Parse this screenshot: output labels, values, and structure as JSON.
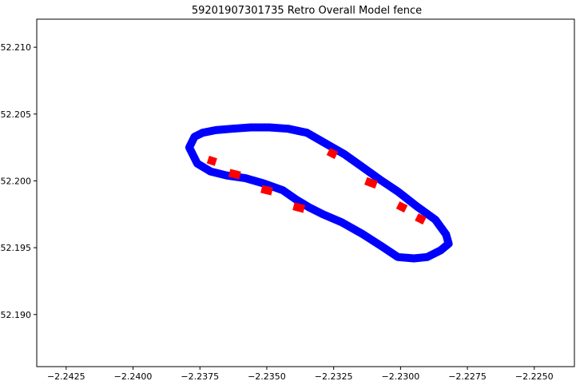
{
  "chart_data": {
    "type": "scatter",
    "title": "59201907301735 Retro Overall Model fence",
    "xlabel": "",
    "ylabel": "",
    "xlim": [
      -2.2436,
      -2.2235
    ],
    "ylim": [
      52.1861,
      52.2121
    ],
    "xticks": [
      -2.2425,
      -2.24,
      -2.2375,
      -2.235,
      -2.2325,
      -2.23,
      -2.2275,
      -2.225
    ],
    "xtick_labels": [
      "−2.2425",
      "−2.2400",
      "−2.2375",
      "−2.2350",
      "−2.2325",
      "−2.2300",
      "−2.2275",
      "−2.2250"
    ],
    "yticks": [
      52.19,
      52.195,
      52.2,
      52.205,
      52.21
    ],
    "ytick_labels": [
      "52.190",
      "52.195",
      "52.200",
      "52.205",
      "52.210"
    ],
    "grid": false,
    "colors": {
      "track": "#0000ff",
      "highlight": "#ff0000"
    },
    "series": [
      {
        "color": "#0000ff",
        "x": [
          -2.2379,
          -2.2376,
          -2.2371,
          -2.2365,
          -2.2358,
          -2.2351,
          -2.2344,
          -2.2339,
          -2.2334,
          -2.2329,
          -2.2322,
          -2.2314,
          -2.2307,
          -2.2301,
          -2.2295,
          -2.229,
          -2.2285,
          -2.2282,
          -2.2283,
          -2.2287,
          -2.2294,
          -2.2301,
          -2.2307,
          -2.2314,
          -2.2321,
          -2.2328,
          -2.2335,
          -2.2342,
          -2.2349,
          -2.2356,
          -2.2363,
          -2.2369,
          -2.2374,
          -2.2377,
          -2.2379
        ],
        "y": [
          52.2025,
          52.2013,
          52.2007,
          52.2004,
          52.2002,
          52.1998,
          52.1993,
          52.1986,
          52.198,
          52.1975,
          52.1969,
          52.196,
          52.1951,
          52.1943,
          52.1942,
          52.1943,
          52.1948,
          52.1953,
          52.196,
          52.1971,
          52.1981,
          52.1992,
          52.2,
          52.201,
          52.202,
          52.2028,
          52.2036,
          52.2039,
          52.204,
          52.204,
          52.2039,
          52.2038,
          52.2036,
          52.2033,
          52.2025
        ]
      },
      {
        "color": "#ff0000",
        "segments": [
          {
            "x": [
              -2.2372,
              -2.2369
            ],
            "y": [
              52.2016,
              52.2014
            ]
          },
          {
            "x": [
              -2.2364,
              -2.236
            ],
            "y": [
              52.2006,
              52.2004
            ]
          },
          {
            "x": [
              -2.2352,
              -2.2348
            ],
            "y": [
              52.1994,
              52.1992
            ]
          },
          {
            "x": [
              -2.234,
              -2.2336
            ],
            "y": [
              52.1981,
              52.1979
            ]
          },
          {
            "x": [
              -2.2327,
              -2.2324
            ],
            "y": [
              52.2022,
              52.2019
            ]
          },
          {
            "x": [
              -2.2313,
              -2.2309
            ],
            "y": [
              52.2,
              52.1997
            ]
          },
          {
            "x": [
              -2.2301,
              -2.2298
            ],
            "y": [
              52.1982,
              52.1979
            ]
          },
          {
            "x": [
              -2.2294,
              -2.2291
            ],
            "y": [
              52.1973,
              52.197
            ]
          }
        ]
      }
    ]
  }
}
